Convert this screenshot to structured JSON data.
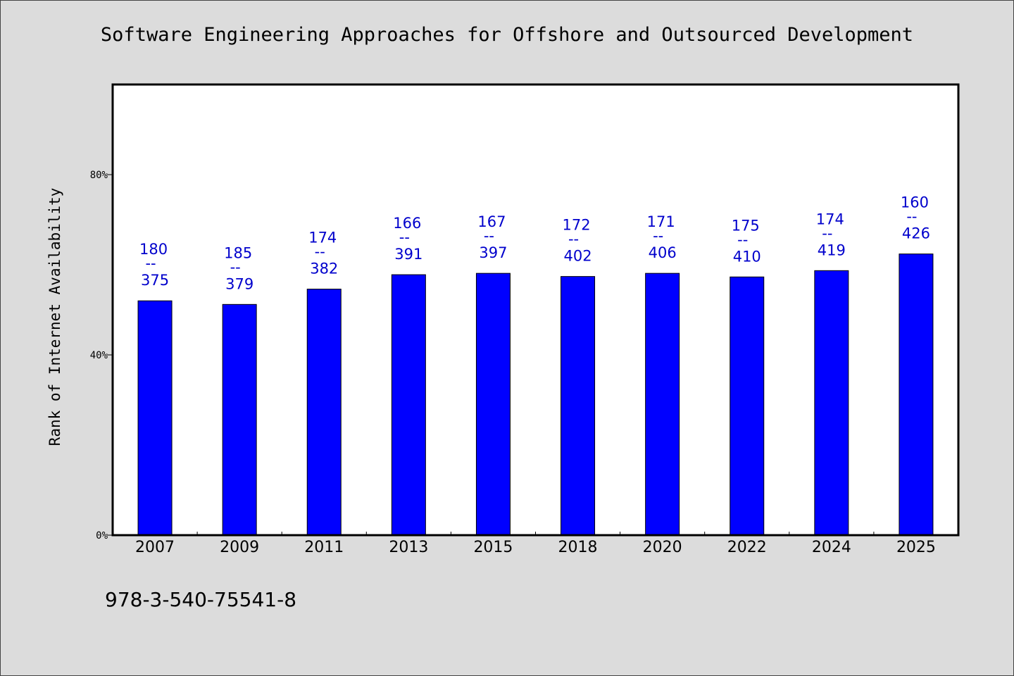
{
  "chart_data": {
    "type": "bar",
    "title": "Software Engineering Approaches for Offshore and Outsourced Development",
    "ylabel": "Rank of Internet Availability",
    "xlabel": "",
    "categories": [
      "2007",
      "2009",
      "2011",
      "2013",
      "2015",
      "2018",
      "2020",
      "2022",
      "2024",
      "2025"
    ],
    "values": [
      0.52,
      0.512,
      0.546,
      0.578,
      0.581,
      0.574,
      0.581,
      0.573,
      0.587,
      0.624
    ],
    "bar_labels": [
      {
        "top": "180",
        "sep": "--",
        "bottom": "375"
      },
      {
        "top": "185",
        "sep": "--",
        "bottom": "379"
      },
      {
        "top": "174",
        "sep": "--",
        "bottom": "382"
      },
      {
        "top": "166",
        "sep": "--",
        "bottom": "391"
      },
      {
        "top": "167",
        "sep": "--",
        "bottom": "397"
      },
      {
        "top": "172",
        "sep": "--",
        "bottom": "402"
      },
      {
        "top": "171",
        "sep": "--",
        "bottom": "406"
      },
      {
        "top": "175",
        "sep": "--",
        "bottom": "410"
      },
      {
        "top": "174",
        "sep": "--",
        "bottom": "419"
      },
      {
        "top": "160",
        "sep": "--",
        "bottom": "426"
      }
    ],
    "ylim": [
      0,
      1.0
    ],
    "yticks": [
      {
        "value": 0,
        "label": "0%"
      },
      {
        "value": 0.4,
        "label": "40%"
      },
      {
        "value": 0.8,
        "label": "80%"
      }
    ],
    "grid": false,
    "colors": {
      "bar": "#0000ff",
      "bar_edge": "#000000",
      "label": "#0000cc",
      "background": "#dcdcdc",
      "plot_bg": "#ffffff"
    }
  },
  "footnote": "978-3-540-75541-8"
}
